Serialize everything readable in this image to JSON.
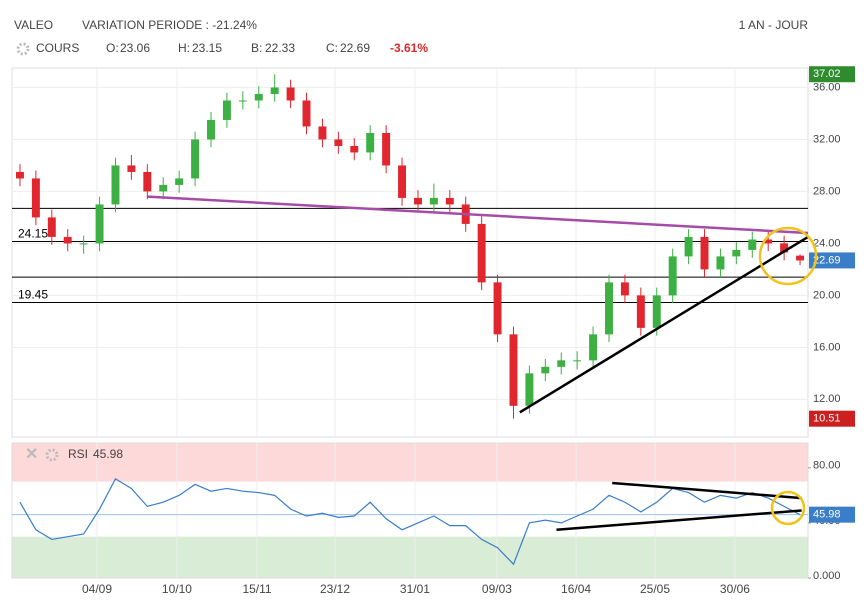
{
  "header": {
    "title": "VALEO",
    "variation": "VARIATION PERIODE : -21.24%",
    "period": "1 AN - JOUR",
    "series_name": "COURS",
    "labels": {
      "open": "O:",
      "high": "H:",
      "low": "B:",
      "close": "C:"
    },
    "change": "-3.61%"
  },
  "chart_data": {
    "type": "candlestick",
    "up_color": "#3cb043",
    "down_color": "#e0262e",
    "xlim": [
      0,
      50
    ],
    "xticks": [
      {
        "value": 5.34,
        "label": "04/09"
      },
      {
        "value": 10.36,
        "label": "10/10"
      },
      {
        "value": 15.39,
        "label": "15/11"
      },
      {
        "value": 20.29,
        "label": "23/12"
      },
      {
        "value": 25.31,
        "label": "31/01"
      },
      {
        "value": 30.46,
        "label": "09/03"
      },
      {
        "value": 35.43,
        "label": "16/04"
      },
      {
        "value": 40.39,
        "label": "25/05"
      },
      {
        "value": 45.41,
        "label": "30/06"
      }
    ],
    "ylim": [
      9.1,
      37.5
    ],
    "yticks": [
      {
        "value": 12,
        "label": "12.00"
      },
      {
        "value": 16,
        "label": "16.00"
      },
      {
        "value": 20,
        "label": "20.00"
      },
      {
        "value": 24,
        "label": "24.00"
      },
      {
        "value": 28,
        "label": "28.00"
      },
      {
        "value": 32,
        "label": "32.00"
      },
      {
        "value": 36,
        "label": "36.00"
      }
    ],
    "open": [
      29.5,
      29,
      26,
      24.5,
      24,
      24,
      27,
      30,
      29.5,
      28,
      28.5,
      29,
      32,
      33.5,
      35,
      35,
      35.5,
      36,
      35,
      33,
      32,
      31.5,
      31,
      32.5,
      30,
      27.5,
      27,
      27.5,
      27,
      25.5,
      21,
      17,
      11.5,
      14,
      14.5,
      15,
      15,
      17,
      21,
      20,
      17.5,
      20,
      23,
      24.5,
      22,
      23,
      23.5,
      24.3,
      24,
      23.06
    ],
    "high": [
      30.1,
      29.6,
      26.6,
      25.1,
      24.6,
      27.6,
      30.6,
      30.8,
      30.1,
      29.1,
      29.6,
      32.6,
      34.1,
      35.6,
      35.7,
      36.1,
      37.02,
      36.6,
      35.6,
      33.6,
      32.6,
      32.1,
      33.1,
      33.1,
      30.6,
      28.1,
      28.6,
      28.1,
      27.6,
      26.1,
      21.6,
      17.6,
      14.6,
      15.1,
      15.6,
      15.7,
      17.6,
      21.6,
      21.6,
      20.6,
      20.6,
      23.6,
      25.1,
      25.1,
      23.6,
      24.1,
      24.9,
      24.9,
      24.6,
      23.15
    ],
    "low": [
      28.4,
      25.4,
      23.9,
      23.4,
      23.2,
      23.4,
      26.4,
      28.9,
      27.4,
      27.4,
      27.9,
      28.4,
      31.4,
      32.9,
      34.3,
      34.4,
      34.9,
      34.4,
      32.4,
      31.4,
      30.9,
      30.4,
      30.4,
      29.4,
      26.9,
      26.4,
      26.4,
      26.4,
      24.9,
      20.4,
      16.4,
      10.51,
      10.9,
      13.4,
      13.9,
      14.3,
      14.4,
      16.4,
      19.4,
      16.9,
      16.9,
      19.4,
      22.4,
      21.4,
      21.4,
      22.4,
      22.9,
      23.4,
      22.7,
      22.33
    ],
    "close": [
      29,
      26,
      24.5,
      24,
      24,
      27,
      30,
      29.5,
      28,
      28.5,
      29,
      32,
      33.5,
      35,
      35,
      35.5,
      36,
      35,
      33,
      32,
      31.5,
      31,
      32.5,
      30,
      27.5,
      27,
      27.5,
      27,
      25.5,
      21,
      17,
      11.5,
      14,
      14.5,
      15,
      15,
      17,
      21,
      20,
      17.5,
      20,
      23,
      24.5,
      22,
      23,
      23.5,
      24.3,
      24,
      23.3,
      22.69
    ],
    "levels": [
      {
        "value": 26.7
      },
      {
        "value": 24.15,
        "label": "24.15"
      },
      {
        "value": 21.4
      },
      {
        "value": 19.45,
        "label": "19.45"
      }
    ],
    "trendlines": [
      {
        "color": "#a64ca6",
        "points": [
          [
            8.5,
            27.6
          ],
          [
            50,
            24.8
          ]
        ]
      },
      {
        "color": "#000000",
        "points": [
          [
            31.9,
            11
          ],
          [
            50,
            24.5
          ]
        ]
      }
    ],
    "indicator": {
      "type": "line",
      "name": "RSI",
      "color": "#3a7dc9",
      "ylim": [
        0,
        98
      ],
      "yticks": [
        {
          "value": 80,
          "label": "80.00"
        },
        {
          "value": 40,
          "label": "40.00"
        },
        {
          "value": 0,
          "label": "0.000"
        }
      ],
      "bands": [
        {
          "from": 70,
          "to": 98,
          "color": "#fdd9d9"
        },
        {
          "from": 0,
          "to": 30,
          "color": "#d8ecd6"
        }
      ],
      "values": [
        55,
        35,
        28,
        30,
        32,
        50,
        72,
        65,
        52,
        55,
        60,
        68,
        63,
        65,
        63,
        62,
        60,
        50,
        45,
        47,
        44,
        45,
        55,
        43,
        35,
        40,
        45,
        38,
        38,
        28,
        22,
        10,
        40,
        42,
        40,
        45,
        50,
        60,
        55,
        48,
        55,
        65,
        62,
        55,
        60,
        58,
        62,
        58,
        52,
        45.98
      ],
      "trendlines": [
        {
          "color": "#000000",
          "points": [
            [
              37.7,
              69
            ],
            [
              49.6,
              58
            ]
          ]
        },
        {
          "color": "#000000",
          "points": [
            [
              34.2,
              35
            ],
            [
              49.6,
              49
            ]
          ]
        }
      ]
    }
  }
}
